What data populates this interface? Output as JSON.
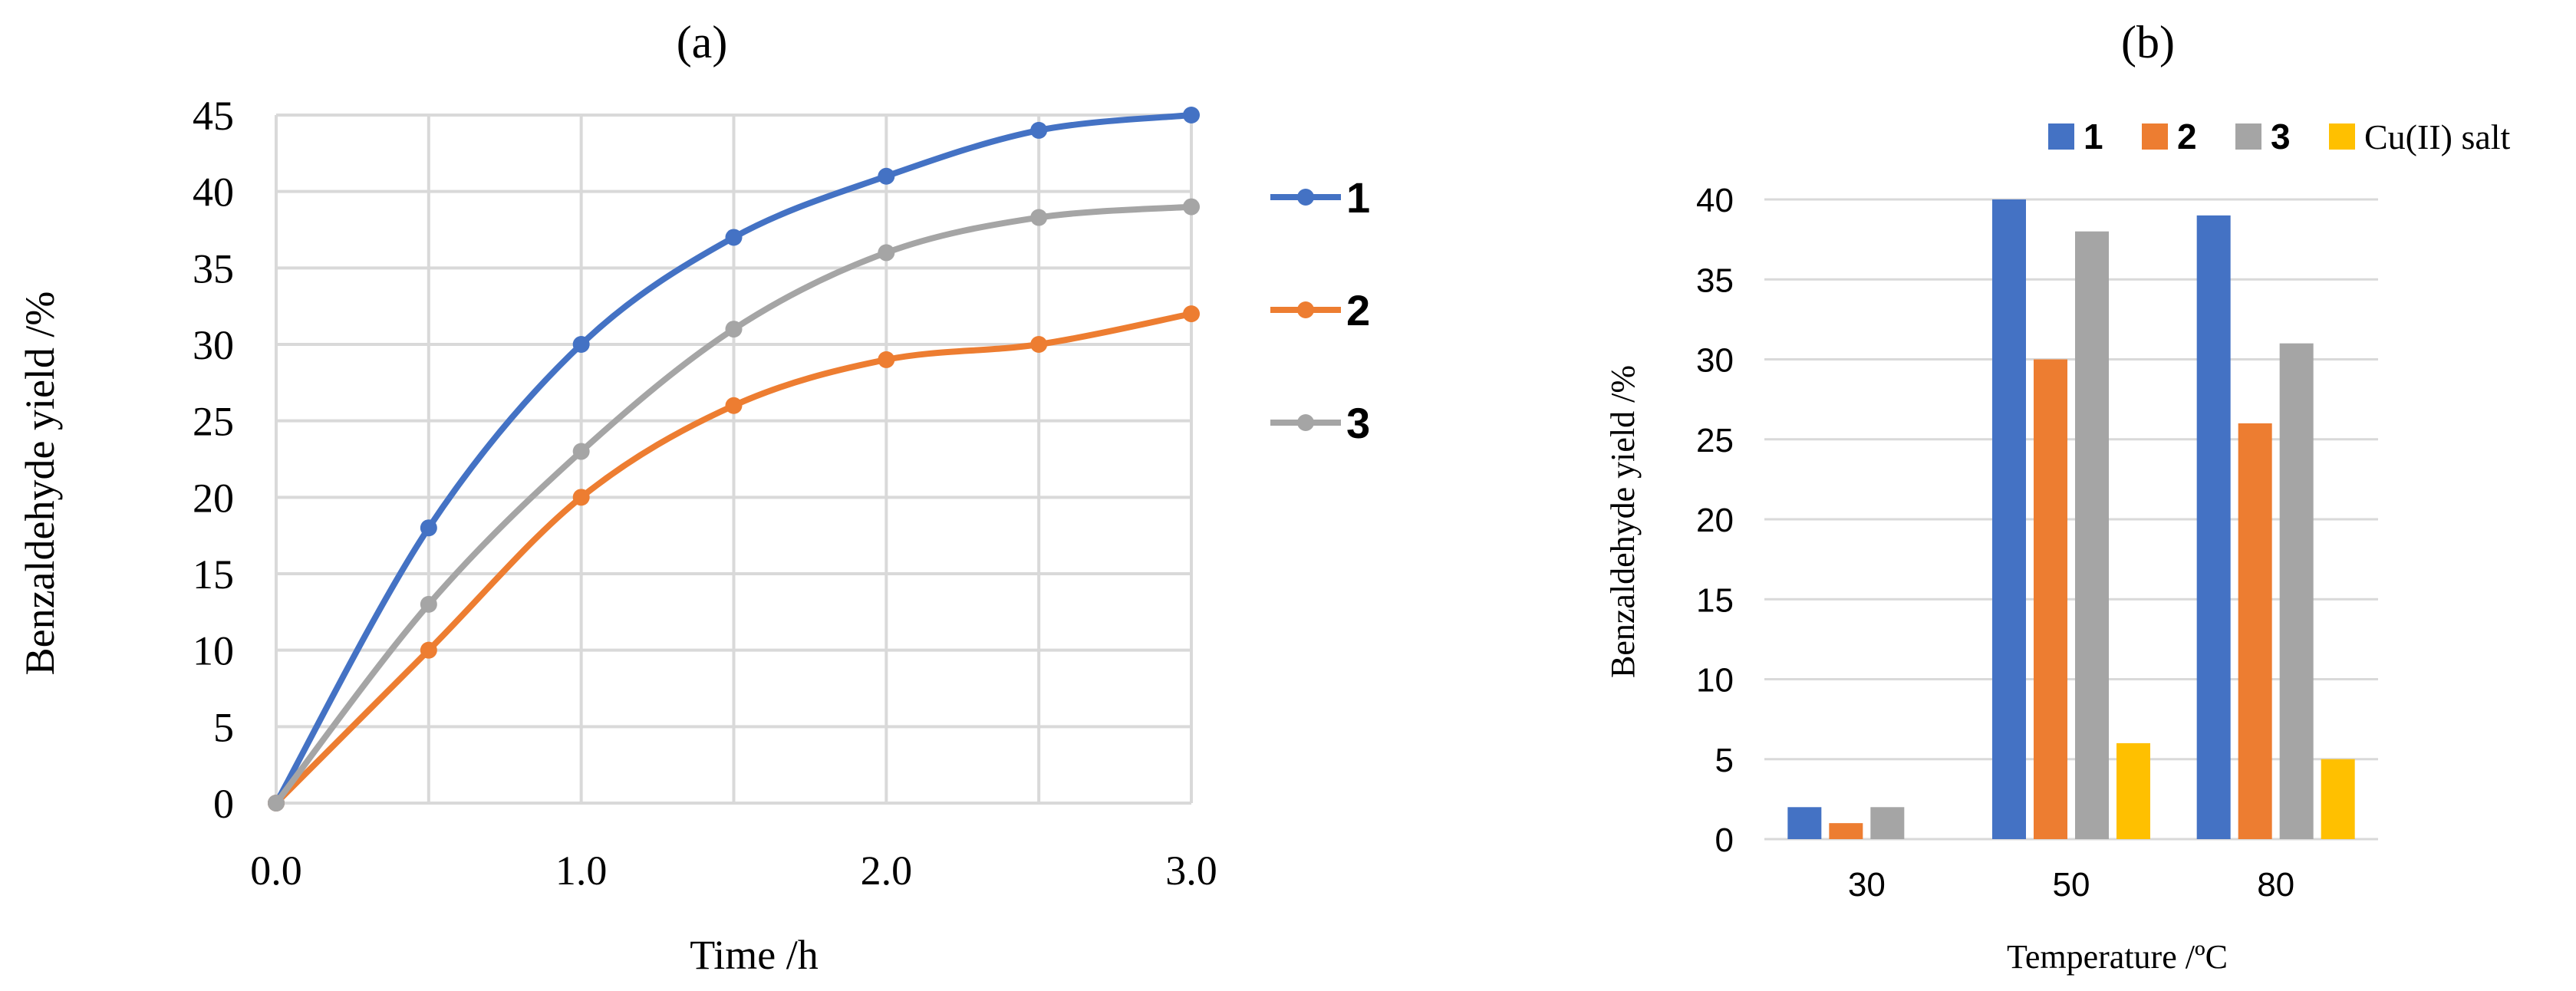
{
  "colors": {
    "s1": "#4472C4",
    "s2": "#ED7D31",
    "s3": "#A5A5A5",
    "cu": "#FFC000",
    "grid": "#D9D9D9"
  },
  "chart_data": [
    {
      "type": "line",
      "panel_label": "(a)",
      "title": "",
      "xlabel": "Time /h",
      "ylabel": "Benzaldehyde yield /%",
      "xlim": [
        0,
        3
      ],
      "ylim": [
        0,
        45
      ],
      "xticks": [
        "0.0",
        "1.0",
        "2.0",
        "3.0"
      ],
      "yticks": [
        "0",
        "5",
        "10",
        "15",
        "20",
        "25",
        "30",
        "35",
        "40",
        "45"
      ],
      "grid": true,
      "legend_position": "right",
      "x": [
        0,
        0.5,
        1.0,
        1.5,
        2.0,
        2.5,
        3.0
      ],
      "series": [
        {
          "name": "1",
          "values": [
            0,
            18,
            30,
            37,
            41,
            44,
            45
          ],
          "color": "#4472C4"
        },
        {
          "name": "2",
          "values": [
            0,
            10,
            20,
            26,
            29,
            30,
            32
          ],
          "color": "#ED7D31"
        },
        {
          "name": "3",
          "values": [
            0,
            13,
            23,
            31,
            36,
            38.3,
            39
          ],
          "color": "#A5A5A5"
        }
      ]
    },
    {
      "type": "bar",
      "panel_label": "(b)",
      "title": "",
      "xlabel": "Temperature /ºC",
      "ylabel": "Benzaldehyde yield /%",
      "categories": [
        "30",
        "50",
        "80"
      ],
      "ylim": [
        0,
        40
      ],
      "yticks": [
        "0",
        "5",
        "10",
        "15",
        "20",
        "25",
        "30",
        "35",
        "40"
      ],
      "grid": true,
      "legend_position": "top",
      "series": [
        {
          "name": "1",
          "values": [
            2,
            40,
            39
          ],
          "color": "#4472C4"
        },
        {
          "name": "2",
          "values": [
            1,
            30,
            26
          ],
          "color": "#ED7D31"
        },
        {
          "name": "3",
          "values": [
            2,
            38,
            31
          ],
          "color": "#A5A5A5"
        },
        {
          "name": "Cu(II) salt",
          "values": [
            0,
            6,
            5
          ],
          "color": "#FFC000"
        }
      ]
    }
  ]
}
